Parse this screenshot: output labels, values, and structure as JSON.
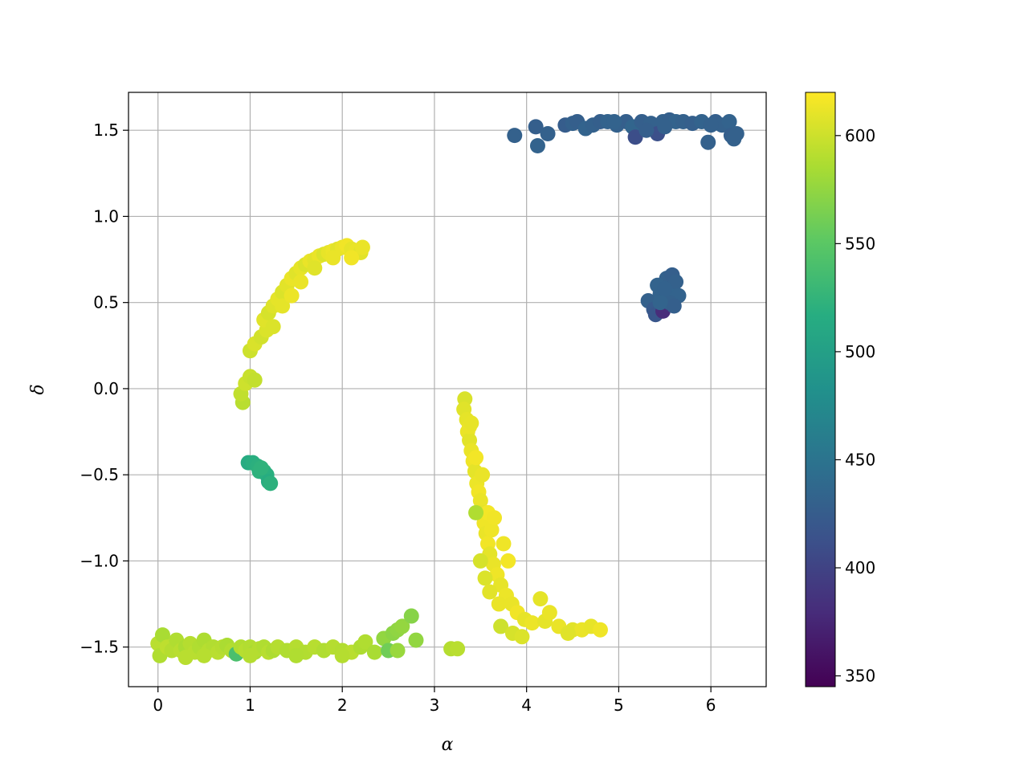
{
  "chart_data": {
    "type": "scatter",
    "title": "",
    "xlabel": "α",
    "ylabel": "δ",
    "xlim": [
      -0.32,
      6.6
    ],
    "ylim": [
      -1.73,
      1.72
    ],
    "grid": true,
    "x_ticks": [
      0,
      1,
      2,
      3,
      4,
      5,
      6
    ],
    "x_tick_labels": [
      "0",
      "1",
      "2",
      "3",
      "4",
      "5",
      "6"
    ],
    "y_ticks": [
      -1.5,
      -1.0,
      -0.5,
      0.0,
      0.5,
      1.0,
      1.5
    ],
    "y_tick_labels": [
      "−1.5",
      "−1.0",
      "−0.5",
      "0.0",
      "0.5",
      "1.0",
      "1.5"
    ],
    "colorbar": {
      "colormap": "viridis",
      "range": [
        345,
        620
      ],
      "ticks": [
        350,
        400,
        450,
        500,
        550,
        600
      ],
      "tick_labels": [
        "350",
        "400",
        "450",
        "500",
        "550",
        "600"
      ]
    },
    "clusters": [
      {
        "description": "upper-left arc",
        "points": [
          [
            0.92,
            -0.08,
            592
          ],
          [
            0.9,
            -0.03,
            595
          ],
          [
            0.95,
            0.03,
            600
          ],
          [
            1.0,
            0.07,
            598
          ],
          [
            1.05,
            0.05,
            596
          ],
          [
            1.0,
            0.22,
            600
          ],
          [
            1.05,
            0.26,
            605
          ],
          [
            1.12,
            0.3,
            602
          ],
          [
            1.18,
            0.34,
            606
          ],
          [
            1.15,
            0.4,
            608
          ],
          [
            1.2,
            0.44,
            604
          ],
          [
            1.25,
            0.48,
            607
          ],
          [
            1.3,
            0.52,
            610
          ],
          [
            1.35,
            0.56,
            606
          ],
          [
            1.4,
            0.6,
            609
          ],
          [
            1.45,
            0.64,
            612
          ],
          [
            1.5,
            0.67,
            608
          ],
          [
            1.55,
            0.7,
            611
          ],
          [
            1.6,
            0.72,
            606
          ],
          [
            1.65,
            0.74,
            612
          ],
          [
            1.7,
            0.75,
            609
          ],
          [
            1.75,
            0.77,
            612
          ],
          [
            1.8,
            0.78,
            606
          ],
          [
            1.85,
            0.79,
            611
          ],
          [
            1.9,
            0.8,
            613
          ],
          [
            1.95,
            0.81,
            609
          ],
          [
            2.0,
            0.82,
            612
          ],
          [
            2.05,
            0.83,
            615
          ],
          [
            2.1,
            0.81,
            611
          ],
          [
            2.15,
            0.8,
            612
          ],
          [
            2.2,
            0.79,
            609
          ],
          [
            2.22,
            0.82,
            612
          ],
          [
            1.25,
            0.36,
            606
          ],
          [
            1.35,
            0.48,
            610
          ],
          [
            1.55,
            0.62,
            612
          ],
          [
            1.7,
            0.7,
            608
          ],
          [
            1.9,
            0.76,
            612
          ],
          [
            2.1,
            0.76,
            615
          ],
          [
            1.45,
            0.54,
            613
          ]
        ]
      },
      {
        "description": "left teal group",
        "points": [
          [
            0.98,
            -0.43,
            515
          ],
          [
            1.03,
            -0.43,
            518
          ],
          [
            1.08,
            -0.45,
            520
          ],
          [
            1.1,
            -0.48,
            522
          ],
          [
            1.15,
            -0.48,
            524
          ],
          [
            1.18,
            -0.5,
            519
          ],
          [
            1.2,
            -0.54,
            516
          ],
          [
            1.22,
            -0.55,
            521
          ],
          [
            1.12,
            -0.46,
            523
          ]
        ]
      },
      {
        "description": "central descending band",
        "points": [
          [
            3.33,
            -0.06,
            605
          ],
          [
            3.32,
            -0.12,
            608
          ],
          [
            3.35,
            -0.18,
            610
          ],
          [
            3.36,
            -0.25,
            612
          ],
          [
            3.38,
            -0.3,
            609
          ],
          [
            3.4,
            -0.36,
            612
          ],
          [
            3.42,
            -0.42,
            614
          ],
          [
            3.44,
            -0.48,
            610
          ],
          [
            3.46,
            -0.55,
            613
          ],
          [
            3.48,
            -0.6,
            615
          ],
          [
            3.5,
            -0.65,
            612
          ],
          [
            3.52,
            -0.72,
            610
          ],
          [
            3.54,
            -0.78,
            614
          ],
          [
            3.56,
            -0.84,
            612
          ],
          [
            3.58,
            -0.9,
            615
          ],
          [
            3.6,
            -0.96,
            610
          ],
          [
            3.64,
            -1.02,
            612
          ],
          [
            3.68,
            -1.08,
            614
          ],
          [
            3.72,
            -1.14,
            611
          ],
          [
            3.78,
            -1.2,
            613
          ],
          [
            3.84,
            -1.25,
            612
          ],
          [
            3.9,
            -1.3,
            615
          ],
          [
            3.98,
            -1.34,
            611
          ],
          [
            4.06,
            -1.36,
            613
          ],
          [
            4.2,
            -1.35,
            610
          ],
          [
            4.35,
            -1.38,
            612
          ],
          [
            4.5,
            -1.4,
            609
          ],
          [
            4.6,
            -1.4,
            612
          ],
          [
            4.7,
            -1.38,
            611
          ],
          [
            4.8,
            -1.4,
            614
          ],
          [
            3.72,
            -1.38,
            600
          ],
          [
            3.85,
            -1.42,
            604
          ],
          [
            3.95,
            -1.44,
            606
          ],
          [
            4.45,
            -1.42,
            608
          ],
          [
            3.38,
            -0.22,
            612
          ],
          [
            3.45,
            -0.4,
            616
          ],
          [
            3.58,
            -0.72,
            616
          ],
          [
            3.62,
            -0.82,
            614
          ],
          [
            3.45,
            -0.72,
            588
          ],
          [
            3.5,
            -1.0,
            604
          ],
          [
            3.55,
            -1.1,
            606
          ],
          [
            3.6,
            -1.18,
            609
          ],
          [
            3.7,
            -1.25,
            612
          ],
          [
            4.15,
            -1.22,
            610
          ],
          [
            4.25,
            -1.3,
            612
          ],
          [
            3.8,
            -1.0,
            616
          ],
          [
            3.75,
            -0.9,
            614
          ],
          [
            3.65,
            -0.75,
            615
          ],
          [
            3.52,
            -0.5,
            612
          ],
          [
            3.4,
            -0.2,
            611
          ]
        ]
      },
      {
        "description": "bottom horizontal band",
        "points": [
          [
            0.0,
            -1.48,
            592
          ],
          [
            0.02,
            -1.55,
            588
          ],
          [
            0.05,
            -1.43,
            585
          ],
          [
            0.1,
            -1.5,
            594
          ],
          [
            0.15,
            -1.52,
            590
          ],
          [
            0.2,
            -1.46,
            588
          ],
          [
            0.25,
            -1.52,
            592
          ],
          [
            0.3,
            -1.5,
            586
          ],
          [
            0.35,
            -1.48,
            590
          ],
          [
            0.4,
            -1.53,
            592
          ],
          [
            0.45,
            -1.5,
            588
          ],
          [
            0.5,
            -1.46,
            587
          ],
          [
            0.55,
            -1.52,
            591
          ],
          [
            0.6,
            -1.5,
            589
          ],
          [
            0.65,
            -1.53,
            592
          ],
          [
            0.7,
            -1.5,
            590
          ],
          [
            0.75,
            -1.49,
            586
          ],
          [
            0.8,
            -1.52,
            589
          ],
          [
            0.85,
            -1.54,
            540
          ],
          [
            0.9,
            -1.5,
            588
          ],
          [
            0.95,
            -1.52,
            591
          ],
          [
            1.0,
            -1.5,
            589
          ],
          [
            1.05,
            -1.53,
            586
          ],
          [
            1.1,
            -1.51,
            590
          ],
          [
            1.15,
            -1.5,
            588
          ],
          [
            1.2,
            -1.53,
            591
          ],
          [
            1.25,
            -1.52,
            587
          ],
          [
            1.3,
            -1.5,
            590
          ],
          [
            1.4,
            -1.52,
            588
          ],
          [
            1.5,
            -1.5,
            590
          ],
          [
            1.6,
            -1.53,
            589
          ],
          [
            1.7,
            -1.5,
            591
          ],
          [
            1.8,
            -1.52,
            588
          ],
          [
            1.9,
            -1.5,
            590
          ],
          [
            2.0,
            -1.52,
            589
          ],
          [
            2.1,
            -1.53,
            592
          ],
          [
            2.2,
            -1.5,
            587
          ],
          [
            2.25,
            -1.47,
            588
          ],
          [
            2.35,
            -1.53,
            585
          ],
          [
            2.45,
            -1.45,
            575
          ],
          [
            2.5,
            -1.52,
            560
          ],
          [
            2.55,
            -1.42,
            572
          ],
          [
            2.6,
            -1.4,
            574
          ],
          [
            2.65,
            -1.38,
            576
          ],
          [
            2.6,
            -1.52,
            578
          ],
          [
            2.75,
            -1.32,
            570
          ],
          [
            2.8,
            -1.46,
            575
          ],
          [
            3.18,
            -1.51,
            590
          ],
          [
            3.25,
            -1.51,
            592
          ],
          [
            0.5,
            -1.55,
            591
          ],
          [
            1.0,
            -1.55,
            590
          ],
          [
            1.5,
            -1.55,
            588
          ],
          [
            2.0,
            -1.55,
            590
          ],
          [
            0.3,
            -1.56,
            592
          ]
        ]
      },
      {
        "description": "top horizontal band",
        "points": [
          [
            3.87,
            1.47,
            430
          ],
          [
            4.1,
            1.52,
            428
          ],
          [
            4.12,
            1.41,
            432
          ],
          [
            4.23,
            1.48,
            430
          ],
          [
            4.42,
            1.53,
            426
          ],
          [
            4.5,
            1.54,
            430
          ],
          [
            4.55,
            1.55,
            428
          ],
          [
            4.64,
            1.51,
            432
          ],
          [
            4.72,
            1.53,
            430
          ],
          [
            4.8,
            1.55,
            428
          ],
          [
            4.88,
            1.55,
            432
          ],
          [
            4.98,
            1.53,
            430
          ],
          [
            5.08,
            1.55,
            428
          ],
          [
            5.15,
            1.52,
            434
          ],
          [
            5.18,
            1.46,
            410
          ],
          [
            5.25,
            1.55,
            428
          ],
          [
            5.35,
            1.54,
            430
          ],
          [
            5.42,
            1.48,
            412
          ],
          [
            5.48,
            1.55,
            430
          ],
          [
            5.55,
            1.56,
            428
          ],
          [
            5.62,
            1.55,
            432
          ],
          [
            5.7,
            1.55,
            430
          ],
          [
            5.8,
            1.54,
            428
          ],
          [
            5.9,
            1.55,
            432
          ],
          [
            5.97,
            1.43,
            430
          ],
          [
            6.05,
            1.55,
            428
          ],
          [
            6.12,
            1.53,
            430
          ],
          [
            6.2,
            1.55,
            432
          ],
          [
            6.22,
            1.47,
            428
          ],
          [
            6.25,
            1.45,
            430
          ],
          [
            6.28,
            1.48,
            430
          ],
          [
            5.5,
            1.52,
            430
          ],
          [
            5.3,
            1.5,
            428
          ],
          [
            4.95,
            1.55,
            432
          ],
          [
            6.0,
            1.53,
            430
          ]
        ]
      },
      {
        "description": "right compact cluster",
        "points": [
          [
            5.32,
            0.51,
            430
          ],
          [
            5.38,
            0.46,
            422
          ],
          [
            5.4,
            0.43,
            418
          ],
          [
            5.45,
            0.55,
            432
          ],
          [
            5.48,
            0.6,
            434
          ],
          [
            5.5,
            0.52,
            428
          ],
          [
            5.52,
            0.64,
            430
          ],
          [
            5.55,
            0.58,
            432
          ],
          [
            5.58,
            0.66,
            428
          ],
          [
            5.6,
            0.55,
            434
          ],
          [
            5.62,
            0.62,
            430
          ],
          [
            5.65,
            0.54,
            432
          ],
          [
            5.48,
            0.45,
            380
          ],
          [
            5.55,
            0.5,
            430
          ],
          [
            5.42,
            0.6,
            432
          ],
          [
            5.6,
            0.48,
            428
          ],
          [
            5.5,
            0.58,
            431
          ],
          [
            5.45,
            0.5,
            433
          ]
        ]
      }
    ]
  }
}
